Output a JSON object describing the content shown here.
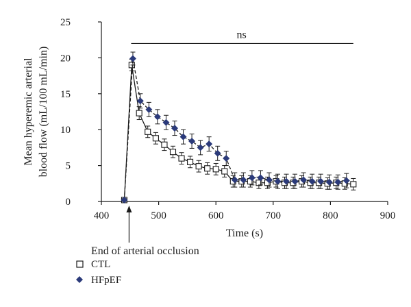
{
  "chart_data": {
    "type": "line",
    "xlabel": "Time (s)",
    "ylabel_lines": [
      "Mean hyperemic arterial",
      "blood flow (mL/100 mL/min)"
    ],
    "xlim": [
      400,
      900
    ],
    "ylim": [
      0,
      25
    ],
    "x_ticks": [
      "400",
      "500",
      "600",
      "700",
      "800",
      "900"
    ],
    "y_ticks": [
      "0",
      "5",
      "10",
      "15",
      "20",
      "25"
    ],
    "grid": false,
    "significance": {
      "label": "ns",
      "x_start": 452,
      "x_end": 840,
      "y": 22
    },
    "annotation": {
      "text": "End of arterial occlusion",
      "x": 440
    },
    "legend_placement": "bottom-left",
    "series": [
      {
        "name": "CTL",
        "marker": "open-square",
        "line": "solid",
        "color": "#1a1a1a",
        "x": [
          440,
          453,
          466,
          481,
          495,
          510,
          525,
          540,
          555,
          570,
          585,
          600,
          615,
          630,
          645,
          660,
          675,
          690,
          705,
          720,
          735,
          750,
          765,
          780,
          795,
          810,
          825,
          840
        ],
        "y": [
          0.2,
          19.0,
          12.3,
          9.7,
          8.8,
          7.9,
          6.9,
          6.0,
          5.5,
          4.9,
          4.6,
          4.5,
          4.2,
          2.8,
          2.8,
          2.8,
          2.6,
          2.6,
          2.8,
          2.6,
          2.6,
          2.8,
          2.6,
          2.6,
          2.5,
          2.6,
          2.5,
          2.4
        ],
        "err": [
          0.3,
          0.8,
          0.9,
          0.8,
          0.8,
          0.8,
          0.8,
          0.8,
          0.8,
          0.8,
          0.8,
          0.8,
          0.8,
          0.8,
          0.8,
          0.8,
          0.8,
          0.8,
          0.8,
          0.8,
          0.8,
          0.8,
          0.8,
          0.8,
          0.8,
          0.8,
          0.8,
          0.8
        ]
      },
      {
        "name": "HFpEF",
        "marker": "diamond",
        "line": "dashed",
        "color": "#2b3a7a",
        "x": [
          440,
          455,
          468,
          483,
          498,
          513,
          528,
          543,
          558,
          573,
          588,
          603,
          618,
          633,
          648,
          663,
          678,
          693,
          708,
          723,
          738,
          753,
          768,
          783,
          798,
          813,
          828
        ],
        "y": [
          0.2,
          19.9,
          14.0,
          12.8,
          11.8,
          11.0,
          10.2,
          9.0,
          8.4,
          7.5,
          8.0,
          6.7,
          6.0,
          3.0,
          3.0,
          3.3,
          3.3,
          3.0,
          2.8,
          2.8,
          2.8,
          3.0,
          2.8,
          2.8,
          2.7,
          2.7,
          2.9
        ],
        "err": [
          0.2,
          0.9,
          1.0,
          1.0,
          1.0,
          1.0,
          1.0,
          1.0,
          1.0,
          1.0,
          1.0,
          1.0,
          1.0,
          1.0,
          1.0,
          1.0,
          1.0,
          1.0,
          1.0,
          1.0,
          1.0,
          1.0,
          1.0,
          1.0,
          1.0,
          1.0,
          1.0
        ]
      }
    ]
  }
}
